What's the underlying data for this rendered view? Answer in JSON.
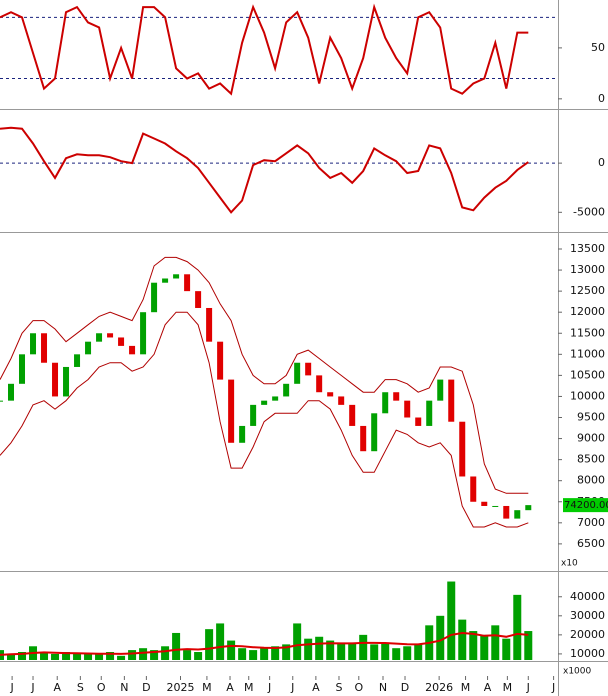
{
  "chart_data": [
    {
      "type": "line",
      "color": "#cc0000",
      "level_color": "#1a237e",
      "values": [
        80,
        85,
        80,
        45,
        10,
        20,
        85,
        90,
        75,
        70,
        20,
        50,
        20,
        90,
        90,
        80,
        30,
        20,
        25,
        10,
        15,
        5,
        55,
        90,
        65,
        30,
        75,
        85,
        60,
        15,
        60,
        40,
        10,
        40,
        90,
        60,
        40,
        25,
        80,
        85,
        70,
        10,
        5,
        15,
        20,
        55,
        10,
        65,
        65
      ],
      "ylim": [
        -9,
        97
      ],
      "yticks": [
        0,
        50
      ],
      "levels": [
        20,
        80
      ]
    },
    {
      "type": "line",
      "color": "#cc0000",
      "level_color": "#1a237e",
      "values": [
        3500,
        3600,
        3500,
        2000,
        200,
        -1500,
        500,
        900,
        800,
        800,
        600,
        200,
        0,
        3000,
        2500,
        2000,
        1200,
        500,
        -500,
        -2000,
        -3500,
        -5000,
        -3800,
        -200,
        300,
        200,
        1000,
        1800,
        1000,
        -500,
        -1500,
        -1000,
        -2000,
        -800,
        1500,
        800,
        200,
        -1000,
        -800,
        1800,
        1500,
        -1000,
        -4500,
        -4800,
        -3500,
        -2500,
        -1800,
        -700,
        100
      ],
      "ylim": [
        -6900,
        5300
      ],
      "yticks": [
        -5000,
        0
      ],
      "levels": [
        0
      ]
    },
    {
      "type": "price",
      "up_color": "#00a000",
      "down_color": "#e00000",
      "values": [
        9900,
        10300,
        11000,
        11500,
        10800,
        10000,
        10700,
        11000,
        11300,
        11500,
        11400,
        11200,
        11000,
        12000,
        12700,
        12800,
        12900,
        12500,
        12100,
        11300,
        10400,
        8900,
        9300,
        9800,
        9900,
        10000,
        10300,
        10800,
        10500,
        10100,
        10000,
        9800,
        9300,
        8700,
        9600,
        10100,
        9900,
        9500,
        9300,
        9900,
        10400,
        9400,
        8100,
        7500,
        7400,
        7400,
        7100,
        7300,
        7420
      ],
      "bands": {
        "color": "#b00000",
        "upper": [
          10400,
          10900,
          11500,
          11800,
          11800,
          11600,
          11300,
          11500,
          11700,
          11900,
          12000,
          11900,
          11800,
          12300,
          13100,
          13300,
          13300,
          13200,
          13000,
          12700,
          12200,
          11800,
          11000,
          10500,
          10300,
          10300,
          10500,
          11000,
          11100,
          10900,
          10700,
          10500,
          10300,
          10100,
          10100,
          10400,
          10400,
          10300,
          10100,
          10200,
          10700,
          10700,
          10600,
          9800,
          8400,
          7800,
          7700,
          7700,
          7700
        ],
        "lower": [
          8600,
          8900,
          9300,
          9800,
          9900,
          9700,
          9900,
          10200,
          10400,
          10700,
          10800,
          10800,
          10600,
          10700,
          11000,
          11700,
          12000,
          12000,
          11700,
          10800,
          9400,
          8300,
          8300,
          8800,
          9400,
          9600,
          9600,
          9600,
          9900,
          9900,
          9700,
          9200,
          8600,
          8200,
          8200,
          8700,
          9200,
          9100,
          8900,
          8800,
          8900,
          8600,
          7400,
          6900,
          6900,
          7000,
          6900,
          6900,
          7000
        ]
      },
      "last_label": "74200.00",
      "unit_label": "x10",
      "ylim": [
        5880,
        13880
      ],
      "yticks": [
        6500,
        7000,
        7500,
        8000,
        8500,
        9000,
        9500,
        10000,
        10500,
        11000,
        11500,
        12000,
        12500,
        13000,
        13500
      ]
    },
    {
      "type": "bar",
      "color": "#00a000",
      "values": [
        12000,
        10000,
        11000,
        14000,
        11000,
        10000,
        11000,
        10000,
        10000,
        10000,
        11000,
        9000,
        12000,
        13000,
        12000,
        14000,
        21000,
        12000,
        11000,
        23000,
        26000,
        17000,
        13000,
        12000,
        13000,
        14000,
        15000,
        26000,
        18000,
        19000,
        17000,
        16000,
        16000,
        20000,
        15000,
        16000,
        13000,
        14000,
        15000,
        25000,
        30000,
        48000,
        28000,
        22000,
        20000,
        25000,
        18000,
        41000,
        22000
      ],
      "ma": {
        "color": "#dd0000",
        "values": [
          9500,
          9800,
          10000,
          10500,
          10800,
          10600,
          10400,
          10300,
          10200,
          10100,
          10100,
          10000,
          10200,
          10600,
          11000,
          11400,
          12200,
          12500,
          12300,
          12800,
          13600,
          14200,
          14000,
          13500,
          13200,
          13100,
          13400,
          14500,
          15000,
          15400,
          15600,
          15500,
          15500,
          15800,
          15800,
          15700,
          15400,
          15100,
          15000,
          15800,
          17000,
          20000,
          21000,
          20500,
          19500,
          19800,
          19000,
          20500,
          20000
        ]
      },
      "unit_label": "x1000",
      "ylim": [
        6800,
        53000
      ],
      "yticks": [
        10000,
        20000,
        30000,
        40000
      ],
      "xlim": [
        0,
        50.7
      ],
      "xticks": [
        {
          "value": 1.1,
          "label": "J"
        },
        {
          "value": 3,
          "label": "J"
        },
        {
          "value": 5.2,
          "label": "A"
        },
        {
          "value": 7.3,
          "label": "S"
        },
        {
          "value": 9.2,
          "label": "O"
        },
        {
          "value": 11.3,
          "label": "N"
        },
        {
          "value": 13.3,
          "label": "D"
        },
        {
          "value": 16.4,
          "label": "2025"
        },
        {
          "value": 18.8,
          "label": "M"
        },
        {
          "value": 20.9,
          "label": "A"
        },
        {
          "value": 22.6,
          "label": "M"
        },
        {
          "value": 24.5,
          "label": "J"
        },
        {
          "value": 26.6,
          "label": "J"
        },
        {
          "value": 28.7,
          "label": "A"
        },
        {
          "value": 30.8,
          "label": "S"
        },
        {
          "value": 32.6,
          "label": "O"
        },
        {
          "value": 34.8,
          "label": "N"
        },
        {
          "value": 36.8,
          "label": "D"
        },
        {
          "value": 39.9,
          "label": "2026"
        },
        {
          "value": 42.3,
          "label": "M"
        },
        {
          "value": 44.3,
          "label": "A"
        },
        {
          "value": 46.1,
          "label": "M"
        },
        {
          "value": 48,
          "label": "J"
        },
        {
          "value": 50.3,
          "label": "J"
        }
      ]
    }
  ]
}
